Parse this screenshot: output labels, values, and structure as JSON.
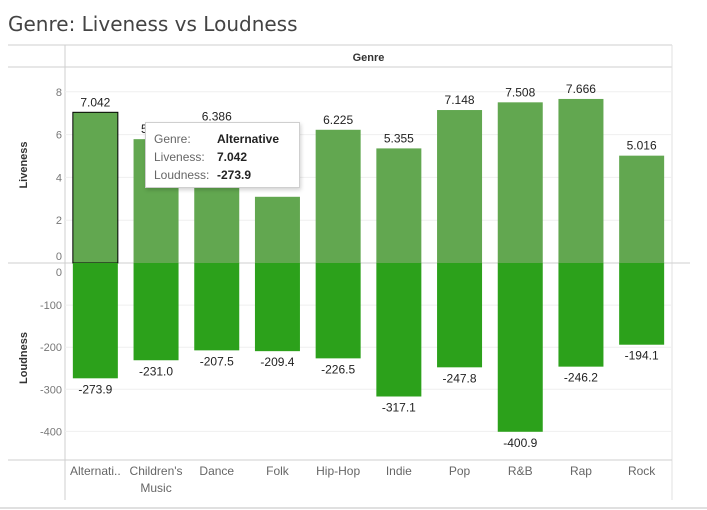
{
  "title": "Genre: Liveness vs Loudness",
  "colors": {
    "liveness": "#62a750",
    "loudness": "#2ca11b",
    "selected_outline": "#000000"
  },
  "tooltip": {
    "genre_key": "Genre:",
    "genre_value": "Alternative",
    "liveness_key": "Liveness:",
    "liveness_value": "7.042",
    "loudness_key": "Loudness:",
    "loudness_value": "-273.9"
  },
  "chart_data": {
    "type": "bar",
    "column_header": "Genre",
    "categories": [
      "Alternati..",
      "Children's Music",
      "Dance",
      "Folk",
      "Hip-Hop",
      "Indie",
      "Pop",
      "R&B",
      "Rap",
      "Rock"
    ],
    "selected_category": "Alternati..",
    "panes": [
      {
        "ylabel": "Liveness",
        "ylim": [
          0,
          8.5
        ],
        "ticks": [
          0,
          2,
          4,
          6,
          8
        ],
        "values": [
          7.042,
          5.787,
          6.386,
          3.094,
          6.225,
          5.355,
          7.148,
          7.508,
          7.666,
          5.016
        ],
        "labels": [
          "7.042",
          "5.787",
          "6.386",
          "",
          "6.225",
          "5.355",
          "7.148",
          "7.508",
          "7.666",
          "5.016"
        ]
      },
      {
        "ylabel": "Loudness",
        "ylim": [
          -460,
          0
        ],
        "ticks": [
          0,
          -100,
          -200,
          -300,
          -400
        ],
        "values": [
          -273.9,
          -231.0,
          -207.5,
          -209.4,
          -226.5,
          -317.1,
          -247.8,
          -400.9,
          -246.2,
          -194.1
        ],
        "labels": [
          "-273.9",
          "-231.0",
          "-207.5",
          "-209.4",
          "-226.5",
          "-317.1",
          "-247.8",
          "-400.9",
          "-246.2",
          "-194.1"
        ]
      }
    ]
  }
}
